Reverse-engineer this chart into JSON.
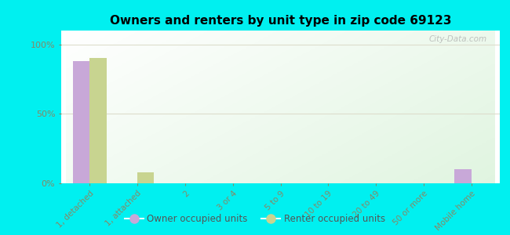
{
  "title": "Owners and renters by unit type in zip code 69123",
  "categories": [
    "1, detached",
    "1, attached",
    "2",
    "3 or 4",
    "5 to 9",
    "10 to 19",
    "20 to 49",
    "50 or more",
    "Mobile home"
  ],
  "owner_values": [
    88,
    0,
    0,
    0,
    0,
    0,
    0,
    0,
    10
  ],
  "renter_values": [
    90,
    8,
    0,
    0,
    0,
    0,
    0,
    0,
    0
  ],
  "owner_color": "#c8a8d8",
  "renter_color": "#c8d490",
  "background_color": "#00f0f0",
  "yticks": [
    0,
    50,
    100
  ],
  "ylim": [
    0,
    110
  ],
  "bar_width": 0.35,
  "watermark": "City-Data.com",
  "legend_owner": "Owner occupied units",
  "legend_renter": "Renter occupied units",
  "tick_color": "#888866",
  "grid_color": "#ddddcc"
}
